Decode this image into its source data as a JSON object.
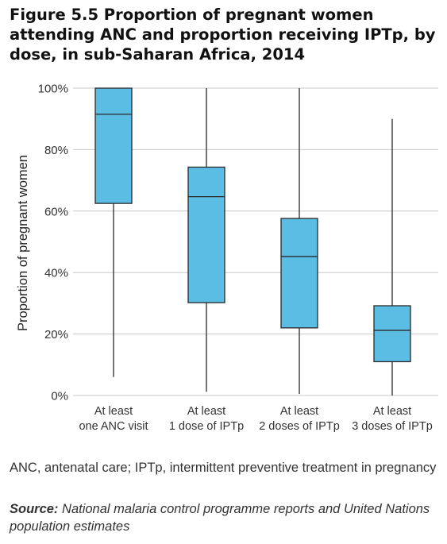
{
  "title": "Figure 5.5 Proportion of pregnant women attending ANC and proportion receiving IPTp, by dose, in sub-Saharan Africa, 2014",
  "footnote": "ANC, antenatal care; IPTp, intermittent preventive treatment in pregnancy",
  "source": {
    "label": "Source:",
    "text": "National malaria control programme reports and United Nations population estimates"
  },
  "colors": {
    "box_fill": "#5bbde3",
    "box_stroke": "#2a2a2a",
    "grid": "#c8c8c8"
  },
  "chart_data": {
    "type": "boxplot",
    "ylabel": "Proportion of pregnant women",
    "ylim": [
      0,
      100
    ],
    "yticks": [
      0,
      20,
      40,
      60,
      80,
      100
    ],
    "ytick_labels": [
      "0%",
      "20%",
      "40%",
      "60%",
      "80%",
      "100%"
    ],
    "grid": true,
    "categories": [
      [
        "At least",
        "one ANC visit"
      ],
      [
        "At least",
        "1 dose of IPTp"
      ],
      [
        "At least",
        "2 doses of IPTp"
      ],
      [
        "At least",
        "3 doses of IPTp"
      ]
    ],
    "boxes": [
      {
        "min": 6,
        "q1": 62.5,
        "median": 91.5,
        "q3": 100,
        "max": 100
      },
      {
        "min": 1.2,
        "q1": 30.2,
        "median": 64.7,
        "q3": 74.3,
        "max": 100
      },
      {
        "min": 0.5,
        "q1": 22,
        "median": 45.2,
        "q3": 57.6,
        "max": 100
      },
      {
        "min": 0,
        "q1": 11,
        "median": 21.2,
        "q3": 29.2,
        "max": 90
      }
    ]
  }
}
